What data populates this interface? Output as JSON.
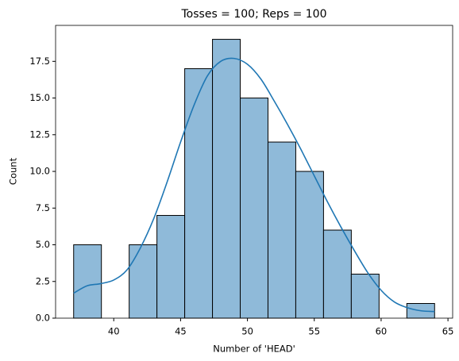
{
  "chart_data": {
    "type": "histogram",
    "title": "Tosses = 100; Reps = 100",
    "xlabel": "Number of 'HEAD'",
    "ylabel": "Count",
    "bins": [
      37,
      39.077,
      41.154,
      43.231,
      45.308,
      47.385,
      49.462,
      51.538,
      53.615,
      55.692,
      57.769,
      59.846,
      61.923,
      64
    ],
    "counts": [
      5,
      0,
      5,
      7,
      17,
      19,
      15,
      12,
      10,
      6,
      3,
      0,
      1
    ],
    "color": "#8fbad9",
    "edgecolor": "#000000",
    "kde": {
      "color": "#1f77b4",
      "x": [
        37,
        38,
        39,
        40,
        41,
        42,
        43,
        44,
        45,
        46,
        47,
        48,
        49,
        50,
        51,
        52,
        53,
        54,
        55,
        56,
        57,
        58,
        59,
        60,
        61,
        62,
        63,
        64
      ],
      "values": [
        1.7,
        2.2,
        2.35,
        2.6,
        3.3,
        4.8,
        6.8,
        9.3,
        12,
        14.5,
        16.5,
        17.5,
        17.7,
        17.3,
        16.3,
        14.8,
        13.2,
        11.5,
        9.7,
        7.9,
        6.2,
        4.6,
        3.1,
        1.9,
        1.1,
        0.7,
        0.5,
        0.45
      ]
    },
    "xlim": [
      35.65,
      65.35
    ],
    "ylim": [
      0,
      19.95
    ],
    "xticks": [
      40,
      45,
      50,
      55,
      60,
      65
    ],
    "yticks": [
      {
        "value": 0,
        "label": "0.0"
      },
      2.5,
      {
        "value": 5,
        "label": "5.0"
      },
      7.5,
      {
        "value": 10,
        "label": "10.0"
      },
      12.5,
      {
        "value": 15,
        "label": "15.0"
      },
      17.5
    ]
  }
}
